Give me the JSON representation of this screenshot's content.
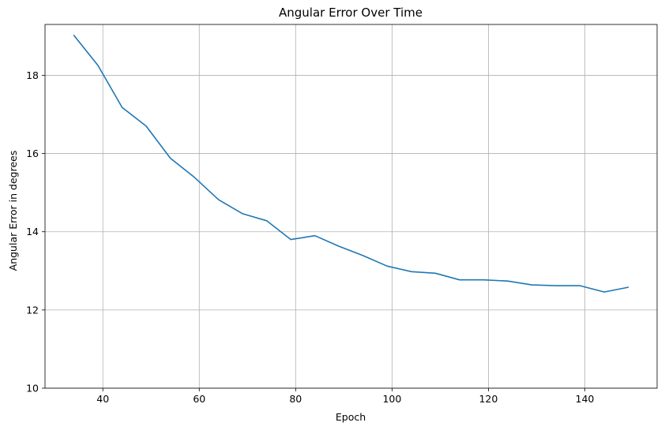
{
  "chart_data": {
    "type": "line",
    "title": "Angular Error Over Time",
    "xlabel": "Epoch",
    "ylabel": "Angular Error in degrees",
    "xlim": [
      28,
      155
    ],
    "ylim": [
      10,
      19.3
    ],
    "xticks": [
      40,
      60,
      80,
      100,
      120,
      140
    ],
    "yticks": [
      10,
      12,
      14,
      16,
      18
    ],
    "grid": true,
    "series": [
      {
        "color": "#1f77b4",
        "x": [
          34,
          39,
          44,
          49,
          54,
          59,
          64,
          69,
          74,
          79,
          84,
          89,
          94,
          99,
          104,
          109,
          114,
          119,
          124,
          129,
          134,
          139,
          144,
          149
        ],
        "y": [
          19.02,
          18.25,
          17.18,
          16.7,
          15.88,
          15.39,
          14.82,
          14.46,
          14.28,
          13.8,
          13.9,
          13.63,
          13.39,
          13.12,
          12.98,
          12.94,
          12.77,
          12.77,
          12.74,
          12.64,
          12.62,
          12.62,
          12.46,
          12.58
        ]
      }
    ]
  }
}
